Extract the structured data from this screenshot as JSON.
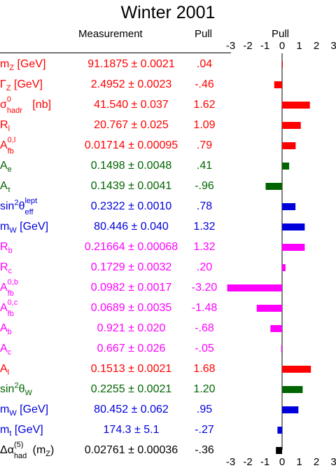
{
  "title": "Winter 2001",
  "headers": {
    "measurement": "Measurement",
    "pull": "Pull",
    "pull_axis": "Pull"
  },
  "colors": {
    "red": "#ff0000",
    "green": "#006400",
    "blue": "#0000dd",
    "magenta": "#ff00ff",
    "black": "#000000"
  },
  "chart_data": {
    "type": "bar",
    "orientation": "horizontal",
    "title": "Winter 2001",
    "xlabel": "Pull",
    "xlim": [
      -3,
      3
    ],
    "x_ticks": [
      -3,
      -2,
      -1,
      0,
      1,
      2,
      3
    ],
    "x_tick_labels": [
      "-3",
      "-2",
      "-1",
      "0",
      "1",
      "2",
      "3"
    ],
    "grid": false,
    "rows": [
      {
        "label": "mZ [GeV]",
        "measurement": "91.1875 ± 0.0021",
        "pull_label": ".04",
        "pull": 0.04,
        "color": "red"
      },
      {
        "label": "ΓZ [GeV]",
        "measurement": "2.4952 ± 0.0023",
        "pull_label": "-.46",
        "pull": -0.46,
        "color": "red"
      },
      {
        "label": "σ0hadr [nb]",
        "measurement": "41.540 ± 0.037",
        "pull_label": "1.62",
        "pull": 1.62,
        "color": "red"
      },
      {
        "label": "Rl",
        "measurement": "20.767 ± 0.025",
        "pull_label": "1.09",
        "pull": 1.09,
        "color": "red"
      },
      {
        "label": "A0,lfb",
        "measurement": "0.01714 ± 0.00095",
        "pull_label": ".79",
        "pull": 0.79,
        "color": "red"
      },
      {
        "label": "Ae",
        "measurement": "0.1498 ± 0.0048",
        "pull_label": ".41",
        "pull": 0.41,
        "color": "green"
      },
      {
        "label": "Aτ",
        "measurement": "0.1439 ± 0.0041",
        "pull_label": "-.96",
        "pull": -0.96,
        "color": "green"
      },
      {
        "label": "sin2θlepteff",
        "measurement": "0.2322 ± 0.0010",
        "pull_label": ".78",
        "pull": 0.78,
        "color": "blue"
      },
      {
        "label": "mW [GeV]",
        "measurement": "80.446 ± 0.040",
        "pull_label": "1.32",
        "pull": 1.32,
        "color": "blue"
      },
      {
        "label": "Rb",
        "measurement": "0.21664 ± 0.00068",
        "pull_label": "1.32",
        "pull": 1.32,
        "color": "magenta"
      },
      {
        "label": "Rc",
        "measurement": "0.1729 ± 0.0032",
        "pull_label": ".20",
        "pull": 0.2,
        "color": "magenta"
      },
      {
        "label": "A0,bfb",
        "measurement": "0.0982 ± 0.0017",
        "pull_label": "-3.20",
        "pull": -3.2,
        "color": "magenta"
      },
      {
        "label": "A0,cfb",
        "measurement": "0.0689 ± 0.0035",
        "pull_label": "-1.48",
        "pull": -1.48,
        "color": "magenta"
      },
      {
        "label": "Ab",
        "measurement": "0.921 ± 0.020",
        "pull_label": "-.68",
        "pull": -0.68,
        "color": "magenta"
      },
      {
        "label": "Ac",
        "measurement": "0.667 ± 0.026",
        "pull_label": "-.05",
        "pull": -0.05,
        "color": "magenta"
      },
      {
        "label": "Al",
        "measurement": "0.1513 ± 0.0021",
        "pull_label": "1.68",
        "pull": 1.68,
        "color": "red"
      },
      {
        "label": "sin2θW",
        "measurement": "0.2255 ± 0.0021",
        "pull_label": "1.20",
        "pull": 1.2,
        "color": "green"
      },
      {
        "label": "mW [GeV]",
        "measurement": "80.452 ± 0.062",
        "pull_label": ".95",
        "pull": 0.95,
        "color": "blue"
      },
      {
        "label": "mt [GeV]",
        "measurement": "174.3 ± 5.1",
        "pull_label": "-.27",
        "pull": -0.27,
        "color": "blue"
      },
      {
        "label": "Δα(5)had(mZ)",
        "measurement": "0.02761 ± 0.00036",
        "pull_label": "-.36",
        "pull": -0.36,
        "color": "black"
      }
    ]
  }
}
